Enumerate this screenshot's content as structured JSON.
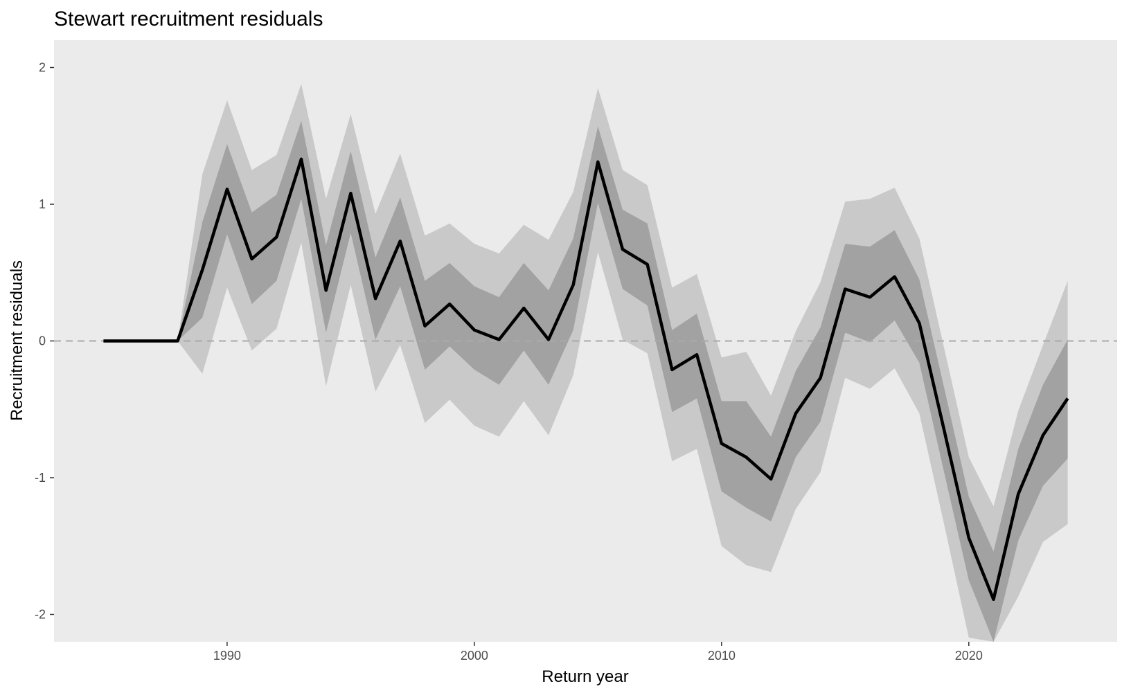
{
  "chart_data": {
    "type": "line",
    "title": "Stewart recruitment residuals",
    "xlabel": "Return year",
    "ylabel": "Recruitment residuals",
    "xlim": [
      1983,
      2026
    ],
    "ylim": [
      -2.2,
      2.2
    ],
    "x_ticks": [
      1990,
      2000,
      2010,
      2020
    ],
    "y_ticks": [
      -2,
      -1,
      0,
      1,
      2
    ],
    "y_tick_labels": [
      "-2",
      "-1",
      "0",
      "1",
      "2"
    ],
    "grid": false,
    "reference_line": 0,
    "colors": {
      "panel": "#ebebeb",
      "outer_band": "#c9c9c9",
      "inner_band": "#a2a2a2",
      "line": "#000000",
      "reference": "#a9a9a9"
    },
    "x": [
      1985,
      1986,
      1987,
      1988,
      1989,
      1990,
      1991,
      1992,
      1993,
      1994,
      1995,
      1996,
      1997,
      1998,
      1999,
      2000,
      2001,
      2002,
      2003,
      2004,
      2005,
      2006,
      2007,
      2008,
      2009,
      2010,
      2011,
      2012,
      2013,
      2014,
      2015,
      2016,
      2017,
      2018,
      2019,
      2020,
      2021,
      2022,
      2023,
      2024
    ],
    "series": [
      {
        "values": [
          0,
          0,
          0,
          0,
          0.52,
          1.11,
          0.6,
          0.76,
          1.33,
          0.37,
          1.08,
          0.31,
          0.73,
          0.11,
          0.27,
          0.08,
          0.01,
          0.24,
          0.01,
          0.41,
          1.31,
          0.67,
          0.56,
          -0.21,
          -0.1,
          -0.75,
          -0.85,
          -1.01,
          -0.53,
          -0.27,
          0.38,
          0.32,
          0.47,
          0.13,
          -0.65,
          -1.44,
          -1.89,
          -1.12,
          -0.69,
          -0.42
        ]
      }
    ],
    "band_50": {
      "lower": [
        0,
        0,
        0,
        0,
        0.17,
        0.78,
        0.27,
        0.44,
        1.04,
        0.06,
        0.79,
        0.01,
        0.4,
        -0.21,
        -0.04,
        -0.21,
        -0.32,
        -0.07,
        -0.32,
        0.08,
        1.01,
        0.38,
        0.26,
        -0.52,
        -0.42,
        -1.1,
        -1.22,
        -1.32,
        -0.85,
        -0.59,
        0.06,
        -0.01,
        0.15,
        -0.16,
        -0.96,
        -1.75,
        -2.2,
        -1.46,
        -1.06,
        -0.86
      ],
      "upper": [
        0,
        0,
        0,
        0,
        0.87,
        1.44,
        0.94,
        1.07,
        1.61,
        0.7,
        1.39,
        0.61,
        1.05,
        0.44,
        0.57,
        0.4,
        0.32,
        0.57,
        0.37,
        0.75,
        1.57,
        0.96,
        0.86,
        0.08,
        0.2,
        -0.44,
        -0.44,
        -0.7,
        -0.22,
        0.1,
        0.71,
        0.69,
        0.81,
        0.45,
        -0.34,
        -1.14,
        -1.54,
        -0.79,
        -0.32,
        0.01
      ]
    },
    "band_95": {
      "lower": [
        0,
        0,
        0,
        0,
        -0.24,
        0.39,
        -0.07,
        0.09,
        0.72,
        -0.33,
        0.41,
        -0.37,
        -0.03,
        -0.6,
        -0.43,
        -0.62,
        -0.7,
        -0.44,
        -0.69,
        -0.25,
        0.65,
        0.01,
        -0.09,
        -0.88,
        -0.79,
        -1.5,
        -1.64,
        -1.69,
        -1.23,
        -0.96,
        -0.27,
        -0.35,
        -0.2,
        -0.53,
        -1.34,
        -2.17,
        -2.2,
        -1.87,
        -1.47,
        -1.34
      ],
      "upper": [
        0,
        0,
        0,
        0,
        1.22,
        1.76,
        1.25,
        1.36,
        1.88,
        1.04,
        1.66,
        0.93,
        1.37,
        0.77,
        0.86,
        0.71,
        0.64,
        0.85,
        0.74,
        1.09,
        1.85,
        1.25,
        1.14,
        0.39,
        0.49,
        -0.12,
        -0.08,
        -0.4,
        0.07,
        0.43,
        1.02,
        1.04,
        1.12,
        0.75,
        -0.05,
        -0.85,
        -1.21,
        -0.51,
        -0.03,
        0.44
      ]
    }
  }
}
